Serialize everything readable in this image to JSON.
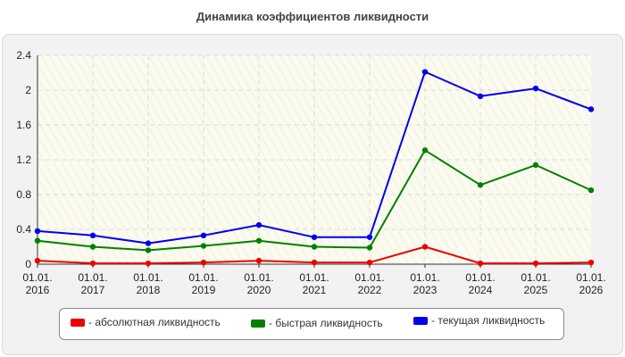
{
  "chart_data": {
    "type": "line",
    "title": "Динамика коэффициентов ликвидности",
    "categories": [
      [
        "01.01.",
        "2016"
      ],
      [
        "01.01.",
        "2017"
      ],
      [
        "01.01.",
        "2018"
      ],
      [
        "01.01.",
        "2019"
      ],
      [
        "01.01.",
        "2020"
      ],
      [
        "01.01.",
        "2021"
      ],
      [
        "01.01.",
        "2022"
      ],
      [
        "01.01.",
        "2023"
      ],
      [
        "01.01.",
        "2024"
      ],
      [
        "01.01.",
        "2025"
      ],
      [
        "01.01.",
        "2026"
      ]
    ],
    "ylim": [
      0,
      2.4
    ],
    "yticks": [
      "0",
      "0.4",
      "0.8",
      "1.2",
      "1.6",
      "2",
      "2.4"
    ],
    "grid": true,
    "legend_position": "bottom",
    "series": [
      {
        "name": "- абсолютная ликвидность",
        "color": "#ee0000",
        "values": [
          0.04,
          0.01,
          0.01,
          0.02,
          0.04,
          0.02,
          0.02,
          0.2,
          0.01,
          0.01,
          0.02
        ]
      },
      {
        "name": "- быстрая ликвидность",
        "color": "#008000",
        "values": [
          0.27,
          0.2,
          0.16,
          0.21,
          0.27,
          0.2,
          0.19,
          1.31,
          0.91,
          1.14,
          0.85
        ]
      },
      {
        "name": "- текущая ликвидность",
        "color": "#0000ee",
        "values": [
          0.38,
          0.33,
          0.24,
          0.33,
          0.45,
          0.31,
          0.31,
          2.21,
          1.93,
          2.02,
          1.78
        ]
      }
    ]
  }
}
